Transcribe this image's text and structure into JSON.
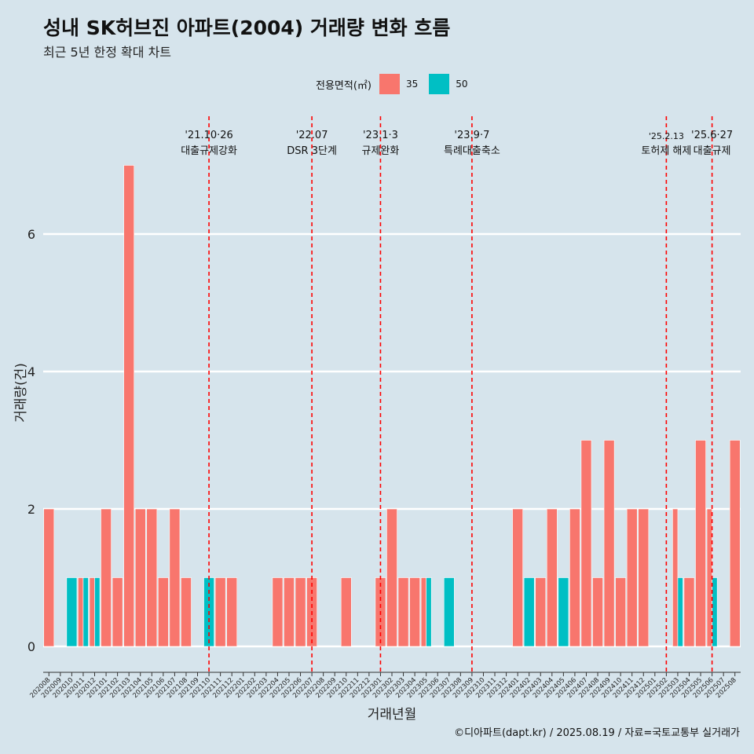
{
  "header": {
    "title": "성내 SK허브진 아파트(2004) 거래량 변화 흐름",
    "subtitle": "최근 5년 한정 확대 차트"
  },
  "legend": {
    "title": "전용면적(㎡)",
    "items": [
      {
        "label": "35",
        "color": "#f8766d"
      },
      {
        "label": "50",
        "color": "#00bfc4"
      }
    ]
  },
  "caption": "©디아파트(dapt.kr) / 2025.08.19 / 자료=국토교통부 실거래가",
  "chart_data": {
    "type": "bar",
    "stacking": "dodge",
    "xlabel": "거래년월",
    "ylabel": "거래량(건)",
    "ylim": [
      0,
      7
    ],
    "yticks": [
      0,
      2,
      4,
      6
    ],
    "grid": true,
    "legend_position": "top",
    "categories": [
      "202008",
      "202009",
      "202010",
      "202011",
      "202012",
      "202101",
      "202102",
      "202103",
      "202104",
      "202105",
      "202106",
      "202107",
      "202108",
      "202109",
      "202110",
      "202111",
      "202112",
      "202201",
      "202202",
      "202203",
      "202204",
      "202205",
      "202206",
      "202207",
      "202208",
      "202209",
      "202210",
      "202211",
      "202212",
      "202301",
      "202302",
      "202303",
      "202304",
      "202305",
      "202306",
      "202307",
      "202308",
      "202309",
      "202310",
      "202311",
      "202312",
      "202401",
      "202402",
      "202403",
      "202404",
      "202405",
      "202406",
      "202407",
      "202408",
      "202409",
      "202410",
      "202411",
      "202412",
      "202501",
      "202502",
      "202503",
      "202504",
      "202505",
      "202506",
      "202507",
      "202508"
    ],
    "series": [
      {
        "name": "35",
        "color": "#f8766d",
        "values": [
          2,
          0,
          0,
          1,
          1,
          2,
          1,
          7,
          2,
          2,
          1,
          2,
          1,
          0,
          0,
          1,
          1,
          0,
          0,
          0,
          1,
          1,
          1,
          1,
          0,
          0,
          1,
          0,
          0,
          1,
          2,
          1,
          1,
          1,
          0,
          0,
          0,
          0,
          0,
          0,
          0,
          2,
          0,
          1,
          2,
          0,
          2,
          3,
          1,
          3,
          1,
          2,
          2,
          0,
          0,
          2,
          1,
          3,
          2,
          0,
          3
        ]
      },
      {
        "name": "50",
        "color": "#00bfc4",
        "values": [
          0,
          0,
          1,
          1,
          1,
          0,
          0,
          0,
          0,
          0,
          0,
          0,
          0,
          0,
          1,
          0,
          0,
          0,
          0,
          0,
          0,
          0,
          0,
          0,
          0,
          0,
          0,
          0,
          0,
          0,
          0,
          0,
          0,
          1,
          0,
          1,
          0,
          0,
          0,
          0,
          0,
          0,
          1,
          0,
          0,
          1,
          0,
          0,
          0,
          0,
          0,
          0,
          0,
          0,
          0,
          1,
          0,
          0,
          1,
          0,
          0
        ]
      }
    ],
    "events": [
      {
        "date": "'21.10·26",
        "label": "대출규제강화",
        "month": "202110"
      },
      {
        "date": "'22.07",
        "label": "DSR 3단계",
        "month": "202207"
      },
      {
        "date": "'23.1·3",
        "label": "규제완화",
        "month": "202301"
      },
      {
        "date": "'23.9·7",
        "label": "특례대출축소",
        "month": "202309"
      },
      {
        "date": "'25.2.13",
        "label": "토허제 해제",
        "month": "202502"
      },
      {
        "date": "'25.6·27",
        "label": "대출규제",
        "month": "202506"
      }
    ]
  }
}
